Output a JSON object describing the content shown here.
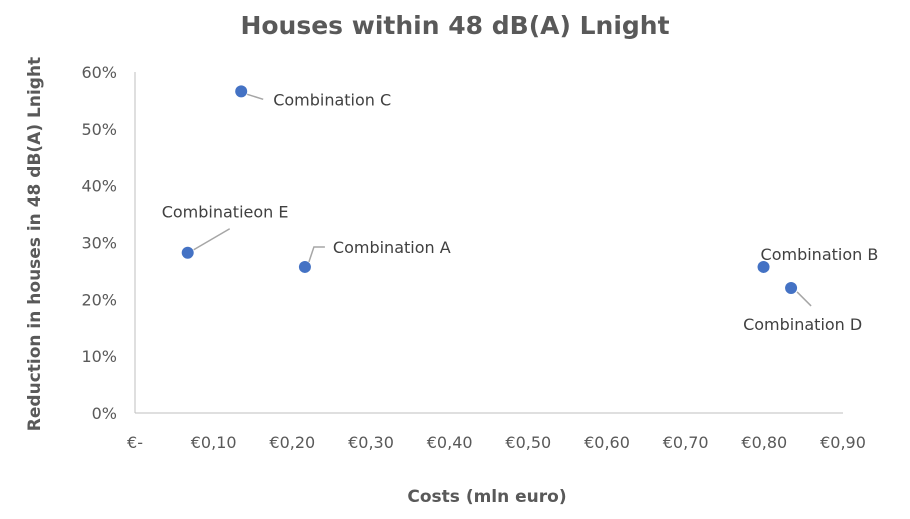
{
  "chart_data": {
    "type": "scatter",
    "title": "Houses within 48 dB(A) Lnight",
    "xlabel": "Costs  (mln euro)",
    "ylabel": "Reduction in houses in 48 dB(A) Lnight",
    "xlim": [
      0,
      0.9
    ],
    "ylim": [
      0,
      0.6
    ],
    "x_ticks": [
      {
        "value": 0.0,
        "label": "€-"
      },
      {
        "value": 0.1,
        "label": "€0,10"
      },
      {
        "value": 0.2,
        "label": "€0,20"
      },
      {
        "value": 0.3,
        "label": "€0,30"
      },
      {
        "value": 0.4,
        "label": "€0,40"
      },
      {
        "value": 0.5,
        "label": "€0,50"
      },
      {
        "value": 0.6,
        "label": "€0,60"
      },
      {
        "value": 0.7,
        "label": "€0,70"
      },
      {
        "value": 0.8,
        "label": "€0,80"
      },
      {
        "value": 0.9,
        "label": "€0,90"
      }
    ],
    "y_ticks": [
      {
        "value": 0.0,
        "label": "0%"
      },
      {
        "value": 0.1,
        "label": "10%"
      },
      {
        "value": 0.2,
        "label": "20%"
      },
      {
        "value": 0.3,
        "label": "30%"
      },
      {
        "value": 0.4,
        "label": "40%"
      },
      {
        "value": 0.5,
        "label": "50%"
      },
      {
        "value": 0.6,
        "label": "60%"
      }
    ],
    "grid": false,
    "legend": "none",
    "marker_color": "#4472c4",
    "points": [
      {
        "label": "Combination C",
        "x": 0.135,
        "y": 0.566
      },
      {
        "label": "Combinatieon E",
        "x": 0.067,
        "y": 0.282
      },
      {
        "label": "Combination A",
        "x": 0.216,
        "y": 0.257
      },
      {
        "label": "Combination B",
        "x": 0.799,
        "y": 0.257
      },
      {
        "label": "Combination D",
        "x": 0.834,
        "y": 0.22
      }
    ]
  }
}
